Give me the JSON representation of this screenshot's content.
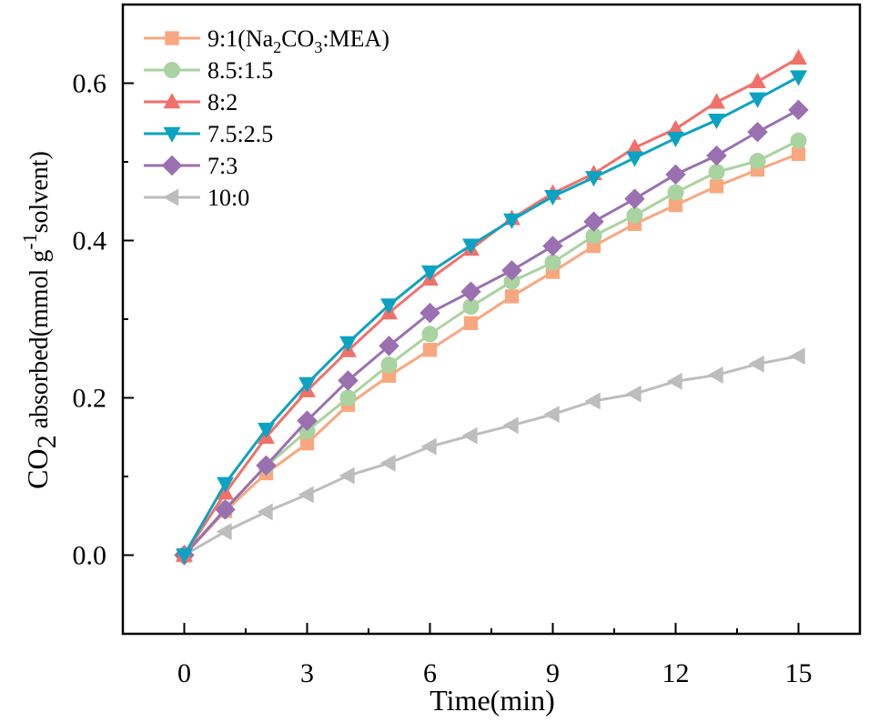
{
  "chart_data": {
    "type": "line",
    "title": "",
    "xlabel": "Time(min)",
    "ylabel": {
      "prefix": "CO",
      "prefix_sub": "2",
      "main": " absorbed(mmol g",
      "sup": "-1",
      "suffix": "solvent)"
    },
    "xlim": [
      -1.5,
      16.5
    ],
    "ylim": [
      -0.1,
      0.7
    ],
    "xticks": [
      0,
      3,
      6,
      9,
      12,
      15
    ],
    "xtick_labels": [
      "0",
      "3",
      "6",
      "9",
      "12",
      "15"
    ],
    "yticks": [
      0.0,
      0.2,
      0.4,
      0.6
    ],
    "ytick_labels": [
      "0.0",
      "0.2",
      "0.4",
      "0.6"
    ],
    "legend_position": "top-left",
    "grid": false,
    "x": [
      0,
      1,
      2,
      3,
      4,
      5,
      6,
      7,
      8,
      9,
      10,
      11,
      12,
      13,
      14,
      15
    ],
    "series": [
      {
        "name": "9:1(Na2CO3:MEA)",
        "label_parts": [
          "9:1(Na",
          "2",
          "CO",
          "3",
          ":MEA)"
        ],
        "marker": "square",
        "color": "#F9A77E",
        "values": [
          0.0,
          0.056,
          0.104,
          0.142,
          0.191,
          0.228,
          0.261,
          0.295,
          0.329,
          0.36,
          0.393,
          0.421,
          0.445,
          0.469,
          0.49,
          0.51
        ]
      },
      {
        "name": "8.5:1.5",
        "marker": "circle",
        "color": "#A9D3A0",
        "values": [
          0.0,
          0.059,
          0.113,
          0.158,
          0.2,
          0.242,
          0.281,
          0.316,
          0.348,
          0.372,
          0.406,
          0.432,
          0.461,
          0.487,
          0.501,
          0.527
        ]
      },
      {
        "name": "8:2",
        "marker": "triangle-up",
        "color": "#F2706A",
        "values": [
          0.0,
          0.079,
          0.15,
          0.209,
          0.26,
          0.308,
          0.351,
          0.389,
          0.428,
          0.46,
          0.485,
          0.518,
          0.542,
          0.576,
          0.602,
          0.632
        ]
      },
      {
        "name": "7.5:2.5",
        "marker": "triangle-down",
        "color": "#0BA3C2",
        "values": [
          0.0,
          0.091,
          0.16,
          0.218,
          0.27,
          0.318,
          0.36,
          0.394,
          0.426,
          0.456,
          0.48,
          0.505,
          0.53,
          0.553,
          0.58,
          0.608
        ]
      },
      {
        "name": "7:3",
        "marker": "diamond",
        "color": "#9A70B0",
        "values": [
          0.0,
          0.058,
          0.114,
          0.171,
          0.222,
          0.266,
          0.308,
          0.335,
          0.362,
          0.393,
          0.424,
          0.453,
          0.484,
          0.508,
          0.538,
          0.566
        ]
      },
      {
        "name": "10:0",
        "marker": "triangle-left",
        "color": "#BDBDBD",
        "values": [
          0.0,
          0.03,
          0.055,
          0.077,
          0.101,
          0.117,
          0.138,
          0.152,
          0.165,
          0.179,
          0.196,
          0.205,
          0.221,
          0.229,
          0.243,
          0.253
        ]
      }
    ]
  }
}
